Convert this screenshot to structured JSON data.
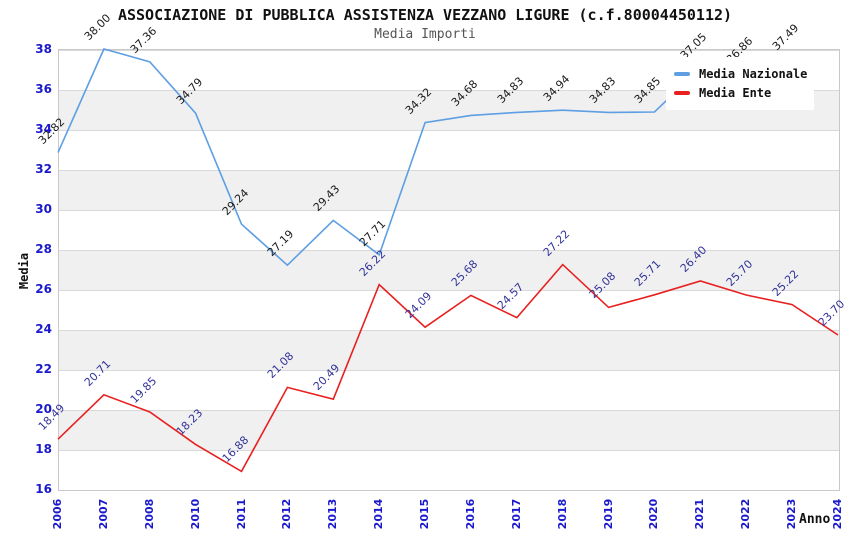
{
  "title": "ASSOCIAZIONE DI PUBBLICA ASSISTENZA VEZZANO LIGURE (c.f.80004450112)",
  "subtitle": "Media Importi",
  "legend": {
    "items": [
      {
        "label": "Media Nazionale",
        "color": "#5e9ee3"
      },
      {
        "label": "Media Ente",
        "color": "#e82020"
      }
    ]
  },
  "axes": {
    "y_title": "Media",
    "x_title": "Anno",
    "y_ticks": [
      38,
      36,
      34,
      32,
      30,
      28,
      26,
      24,
      22,
      20,
      18,
      16
    ],
    "tick_color": "#1a1acc"
  },
  "chart_data": {
    "type": "line",
    "title": "Media Importi",
    "xlabel": "Anno",
    "ylabel": "Media",
    "ylim": [
      16,
      38
    ],
    "grid": "horizontal, alternating gray bands every 2 units",
    "legend_position": "top-right inside plot",
    "categories": [
      "2006",
      "2007",
      "2008",
      "2010",
      "2011",
      "2012",
      "2013",
      "2014",
      "2015",
      "2016",
      "2017",
      "2018",
      "2019",
      "2020",
      "2021",
      "2022",
      "2023",
      "2024"
    ],
    "series": [
      {
        "name": "Media Nazionale",
        "color": "#5e9ee3",
        "label_color": "#1a1a1a",
        "values": [
          32.82,
          38.0,
          37.36,
          34.79,
          29.24,
          27.19,
          29.43,
          27.71,
          34.32,
          34.68,
          34.83,
          34.94,
          34.83,
          34.85,
          37.05,
          36.86,
          37.49,
          null
        ]
      },
      {
        "name": "Media Ente",
        "color": "#e82020",
        "label_color": "#333399",
        "values": [
          18.49,
          20.71,
          19.85,
          18.23,
          16.88,
          21.08,
          20.49,
          26.22,
          24.09,
          25.68,
          24.57,
          27.22,
          25.08,
          25.71,
          26.4,
          25.7,
          25.22,
          23.7
        ]
      }
    ]
  }
}
